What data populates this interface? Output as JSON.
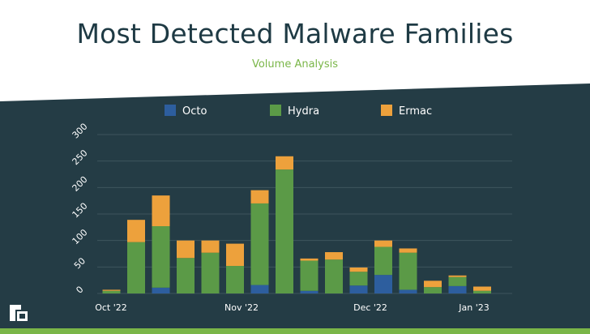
{
  "title": "Most Detected Malware Families",
  "subtitle": "Volume Analysis",
  "colors": {
    "background_panel": "#243c45",
    "Octo": "#2d5e9e",
    "Hydra": "#5b9a47",
    "Ermac": "#eda13c",
    "accent": "#7ab648"
  },
  "logo": {
    "name": "threatfabric-logo-icon"
  },
  "chart_data": {
    "type": "bar",
    "stacked": true,
    "title": "Most Detected Malware Families",
    "subtitle": "Volume Analysis",
    "legend_position": "top",
    "ylim": [
      0,
      300
    ],
    "yticks": [
      "0",
      "50",
      "100",
      "150",
      "200",
      "250",
      "300"
    ],
    "x_tick_labels": [
      "Oct '22",
      "Nov '22",
      "Dec '22",
      "Jan '23"
    ],
    "categories": [
      "1",
      "2",
      "3",
      "4",
      "5",
      "6",
      "7",
      "8",
      "9",
      "10",
      "11",
      "12",
      "13",
      "14",
      "15",
      "16",
      "17",
      "18"
    ],
    "series": [
      {
        "name": "Octo",
        "values": [
          0,
          0,
          11,
          0,
          0,
          0,
          16,
          0,
          5,
          0,
          15,
          35,
          7,
          0,
          14,
          0,
          0,
          0
        ]
      },
      {
        "name": "Hydra",
        "values": [
          5,
          97,
          116,
          67,
          77,
          52,
          154,
          234,
          57,
          64,
          26,
          53,
          70,
          12,
          17,
          5,
          0,
          0
        ]
      },
      {
        "name": "Ermac",
        "values": [
          2,
          42,
          58,
          33,
          23,
          42,
          25,
          25,
          4,
          14,
          8,
          12,
          8,
          12,
          3,
          8,
          0,
          0
        ]
      }
    ],
    "grid": true
  }
}
